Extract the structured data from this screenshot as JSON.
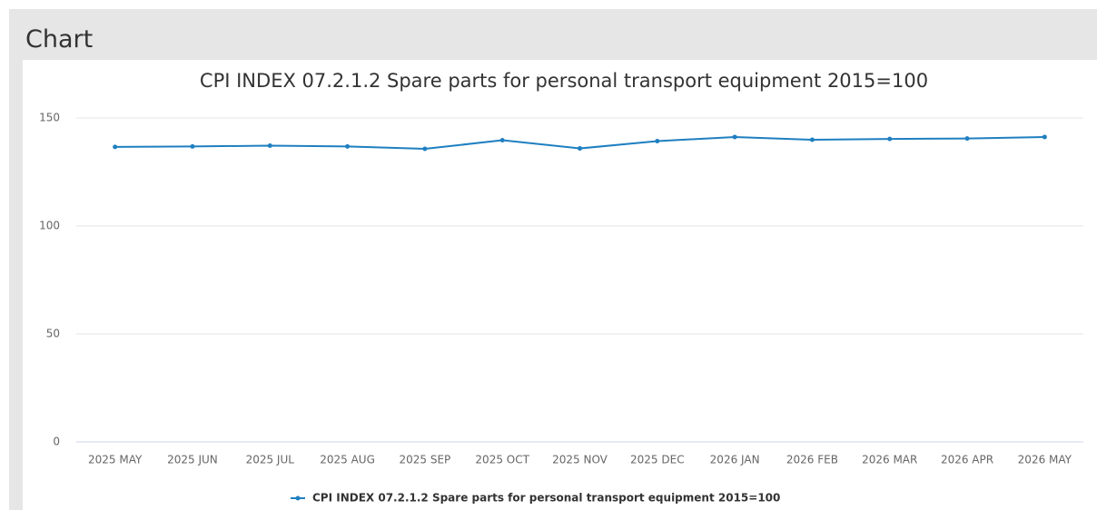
{
  "page_title": "Chart",
  "chart_data": {
    "type": "line",
    "title": "CPI INDEX 07.2.1.2 Spare parts for personal transport equipment 2015=100",
    "categories": [
      "2025 MAY",
      "2025 JUN",
      "2025 JUL",
      "2025 AUG",
      "2025 SEP",
      "2025 OCT",
      "2025 NOV",
      "2025 DEC",
      "2026 JAN",
      "2026 FEB",
      "2026 MAR",
      "2026 APR",
      "2026 MAY"
    ],
    "series": [
      {
        "name": "CPI INDEX 07.2.1.2 Spare parts for personal transport equipment 2015=100",
        "color": "#1f7fc1",
        "values": [
          136.6,
          136.8,
          137.2,
          136.8,
          135.7,
          139.7,
          135.9,
          139.3,
          141.2,
          139.9,
          140.3,
          140.5,
          141.2
        ]
      }
    ],
    "ylim": [
      0,
      150
    ],
    "yticks": [
      0,
      50,
      100,
      150
    ],
    "grid": true,
    "legend": "bottom"
  }
}
